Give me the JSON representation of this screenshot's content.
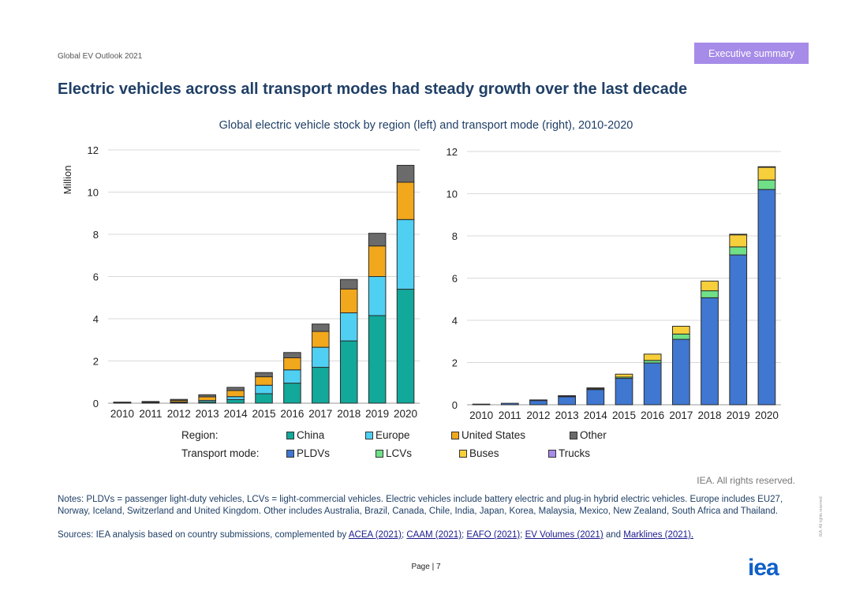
{
  "header": {
    "report": "Global EV Outlook 2021",
    "section": "Executive summary"
  },
  "title": "Electric vehicles across all transport modes had steady growth over the last decade",
  "subtitle": "Global electric vehicle stock by region (left) and transport mode (right), 2010-2020",
  "legend": {
    "region_label": "Region:",
    "mode_label": "Transport mode:",
    "region_items": [
      {
        "name": "China",
        "color": "#12a89a"
      },
      {
        "name": "Europe",
        "color": "#4fd0f2"
      },
      {
        "name": "United States",
        "color": "#f2a81c"
      },
      {
        "name": "Other",
        "color": "#6b6b6b"
      }
    ],
    "mode_items": [
      {
        "name": "PLDVs",
        "color": "#3f77d1"
      },
      {
        "name": "LCVs",
        "color": "#6fe088"
      },
      {
        "name": "Buses",
        "color": "#f7cf3a"
      },
      {
        "name": "Trucks",
        "color": "#a68be8"
      }
    ]
  },
  "chart_data": [
    {
      "type": "bar",
      "stacked": true,
      "title": "Global electric vehicle stock by region",
      "ylabel": "Million",
      "ylim": [
        0,
        12
      ],
      "yticks": [
        0,
        2,
        4,
        6,
        8,
        10,
        12
      ],
      "categories": [
        "2010",
        "2011",
        "2012",
        "2013",
        "2014",
        "2015",
        "2016",
        "2017",
        "2018",
        "2019",
        "2020"
      ],
      "series": [
        {
          "name": "China",
          "color": "#12a89a",
          "values": [
            0.01,
            0.02,
            0.03,
            0.06,
            0.17,
            0.45,
            0.95,
            1.7,
            2.95,
            4.15,
            5.4
          ]
        },
        {
          "name": "Europe",
          "color": "#4fd0f2",
          "values": [
            0.0,
            0.01,
            0.03,
            0.07,
            0.14,
            0.4,
            0.63,
            0.95,
            1.33,
            1.85,
            3.3
          ]
        },
        {
          "name": "United States",
          "color": "#f2a81c",
          "values": [
            0.01,
            0.02,
            0.07,
            0.17,
            0.29,
            0.4,
            0.57,
            0.75,
            1.13,
            1.45,
            1.77
          ]
        },
        {
          "name": "Other",
          "color": "#6b6b6b",
          "values": [
            0.01,
            0.02,
            0.05,
            0.1,
            0.15,
            0.2,
            0.25,
            0.35,
            0.45,
            0.6,
            0.8
          ]
        }
      ]
    },
    {
      "type": "bar",
      "stacked": true,
      "title": "Global electric vehicle stock by transport mode",
      "ylim": [
        0,
        12
      ],
      "yticks": [
        0,
        2,
        4,
        6,
        8,
        10,
        12
      ],
      "categories": [
        "2010",
        "2011",
        "2012",
        "2013",
        "2014",
        "2015",
        "2016",
        "2017",
        "2018",
        "2019",
        "2020"
      ],
      "series": [
        {
          "name": "PLDVs",
          "color": "#3f77d1",
          "values": [
            0.03,
            0.07,
            0.2,
            0.38,
            0.72,
            1.25,
            1.98,
            3.1,
            5.07,
            7.1,
            10.2
          ]
        },
        {
          "name": "LCVs",
          "color": "#6fe088",
          "values": [
            0.0,
            0.0,
            0.01,
            0.02,
            0.04,
            0.06,
            0.12,
            0.25,
            0.33,
            0.38,
            0.45
          ]
        },
        {
          "name": "Buses",
          "color": "#f7cf3a",
          "values": [
            0.0,
            0.0,
            0.0,
            0.02,
            0.04,
            0.14,
            0.3,
            0.37,
            0.46,
            0.57,
            0.6
          ]
        },
        {
          "name": "Trucks",
          "color": "#a68be8",
          "values": [
            0.0,
            0.0,
            0.0,
            0.0,
            0.0,
            0.0,
            0.0,
            0.0,
            0.0,
            0.01,
            0.02
          ]
        }
      ]
    }
  ],
  "rights": "IEA. All rights reserved.",
  "notes": "Notes: PLDVs = passenger light-duty vehicles, LCVs = light-commercial vehicles. Electric vehicles include battery electric and plug-in hybrid electric vehicles. Europe includes EU27, Norway, Iceland, Switzerland and United Kingdom. Other includes Australia, Brazil, Canada, Chile, India, Japan, Korea, Malaysia, Mexico, New Zealand, South Africa and Thailand.",
  "sources": {
    "prefix": "Sources: IEA analysis based on country submissions, complemented by ",
    "links": [
      "ACEA (2021)",
      "CAAM (2021)",
      "EAFO (2021)",
      "EV Volumes (2021)",
      "Marklines (2021)."
    ],
    "sep": "; ",
    "and": " and "
  },
  "footer": {
    "page": "Page | 7",
    "logo": "iea",
    "side": "IEA. All rights reserved."
  }
}
